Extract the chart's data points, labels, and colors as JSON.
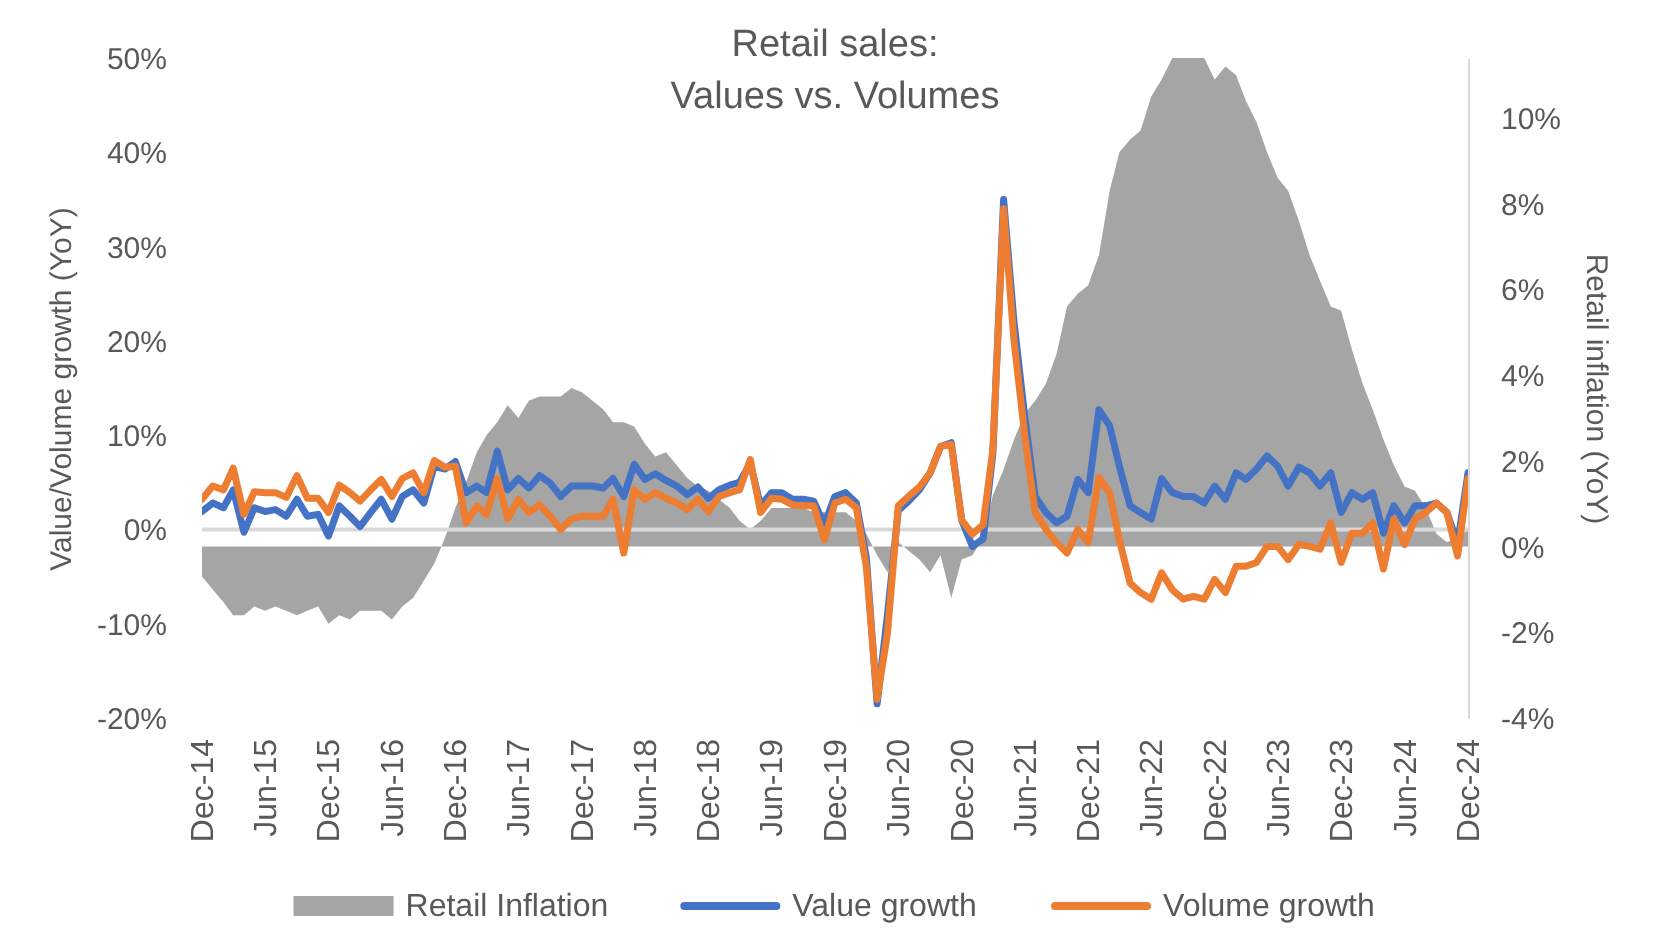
{
  "chart_data": {
    "type": "line",
    "title": "Retail sales:\nValues vs. Volumes",
    "ylabel": "Value/Volume growth (YoY)",
    "y2label": "Retail inflation (YoY)",
    "x": [
      "2014-12",
      "2015-01",
      "2015-02",
      "2015-03",
      "2015-04",
      "2015-05",
      "2015-06",
      "2015-07",
      "2015-08",
      "2015-09",
      "2015-10",
      "2015-11",
      "2015-12",
      "2016-01",
      "2016-02",
      "2016-03",
      "2016-04",
      "2016-05",
      "2016-06",
      "2016-07",
      "2016-08",
      "2016-09",
      "2016-10",
      "2016-11",
      "2016-12",
      "2017-01",
      "2017-02",
      "2017-03",
      "2017-04",
      "2017-05",
      "2017-06",
      "2017-07",
      "2017-08",
      "2017-09",
      "2017-10",
      "2017-11",
      "2017-12",
      "2018-01",
      "2018-02",
      "2018-03",
      "2018-04",
      "2018-05",
      "2018-06",
      "2018-07",
      "2018-08",
      "2018-09",
      "2018-10",
      "2018-11",
      "2018-12",
      "2019-01",
      "2019-02",
      "2019-03",
      "2019-04",
      "2019-05",
      "2019-06",
      "2019-07",
      "2019-08",
      "2019-09",
      "2019-10",
      "2019-11",
      "2019-12",
      "2020-01",
      "2020-02",
      "2020-03",
      "2020-04",
      "2020-05",
      "2020-06",
      "2020-07",
      "2020-08",
      "2020-09",
      "2020-10",
      "2020-11",
      "2020-12",
      "2021-01",
      "2021-02",
      "2021-03",
      "2021-04",
      "2021-05",
      "2021-06",
      "2021-07",
      "2021-08",
      "2021-09",
      "2021-10",
      "2021-11",
      "2021-12",
      "2022-01",
      "2022-02",
      "2022-03",
      "2022-04",
      "2022-05",
      "2022-06",
      "2022-07",
      "2022-08",
      "2022-09",
      "2022-10",
      "2022-11",
      "2022-12",
      "2023-01",
      "2023-02",
      "2023-03",
      "2023-04",
      "2023-05",
      "2023-06",
      "2023-07",
      "2023-08",
      "2023-09",
      "2023-10",
      "2023-11",
      "2023-12",
      "2024-01",
      "2024-02",
      "2024-03",
      "2024-04",
      "2024-05",
      "2024-06",
      "2024-07",
      "2024-08",
      "2024-09",
      "2024-10",
      "2024-11",
      "2024-12"
    ],
    "xlim": [
      "2014-12",
      "2024-12"
    ],
    "xticks": [
      {
        "value": "2014-12",
        "label": "Dec-14"
      },
      {
        "value": "2015-06",
        "label": "Jun-15"
      },
      {
        "value": "2015-12",
        "label": "Dec-15"
      },
      {
        "value": "2016-06",
        "label": "Jun-16"
      },
      {
        "value": "2016-12",
        "label": "Dec-16"
      },
      {
        "value": "2017-06",
        "label": "Jun-17"
      },
      {
        "value": "2017-12",
        "label": "Dec-17"
      },
      {
        "value": "2018-06",
        "label": "Jun-18"
      },
      {
        "value": "2018-12",
        "label": "Dec-18"
      },
      {
        "value": "2019-06",
        "label": "Jun-19"
      },
      {
        "value": "2019-12",
        "label": "Dec-19"
      },
      {
        "value": "2020-06",
        "label": "Jun-20"
      },
      {
        "value": "2020-12",
        "label": "Dec-20"
      },
      {
        "value": "2021-06",
        "label": "Jun-21"
      },
      {
        "value": "2021-12",
        "label": "Dec-21"
      },
      {
        "value": "2022-06",
        "label": "Jun-22"
      },
      {
        "value": "2022-12",
        "label": "Dec-22"
      },
      {
        "value": "2023-06",
        "label": "Jun-23"
      },
      {
        "value": "2023-12",
        "label": "Dec-23"
      },
      {
        "value": "2024-06",
        "label": "Jun-24"
      },
      {
        "value": "2024-12",
        "label": "Dec-24"
      }
    ],
    "ylim": [
      -20,
      50
    ],
    "yticks": [
      {
        "value": -20,
        "label": "-20%"
      },
      {
        "value": -10,
        "label": "-10%"
      },
      {
        "value": 0,
        "label": "0%"
      },
      {
        "value": 10,
        "label": "10%"
      },
      {
        "value": 20,
        "label": "20%"
      },
      {
        "value": 30,
        "label": "30%"
      },
      {
        "value": 40,
        "label": "40%"
      },
      {
        "value": 50,
        "label": "50%"
      }
    ],
    "y2lim": [
      -4,
      11.4
    ],
    "y2ticks": [
      {
        "value": -4,
        "label": "-4%"
      },
      {
        "value": -2,
        "label": "-2%"
      },
      {
        "value": 0,
        "label": "0%"
      },
      {
        "value": 2,
        "label": "2%"
      },
      {
        "value": 4,
        "label": "4%"
      },
      {
        "value": 6,
        "label": "6%"
      },
      {
        "value": 8,
        "label": "8%"
      },
      {
        "value": 10,
        "label": "10%"
      }
    ],
    "series": [
      {
        "name": "Retail Inflation",
        "type": "area",
        "axis": "y2",
        "color": "#a5a5a5",
        "values": [
          -0.7,
          -1.0,
          -1.3,
          -1.6,
          -1.6,
          -1.4,
          -1.5,
          -1.4,
          -1.5,
          -1.6,
          -1.5,
          -1.4,
          -1.8,
          -1.6,
          -1.7,
          -1.5,
          -1.5,
          -1.5,
          -1.7,
          -1.4,
          -1.2,
          -0.8,
          -0.4,
          0.2,
          0.9,
          1.5,
          2.2,
          2.6,
          2.9,
          3.3,
          3.0,
          3.4,
          3.5,
          3.5,
          3.5,
          3.7,
          3.6,
          3.4,
          3.2,
          2.9,
          2.9,
          2.8,
          2.4,
          2.1,
          2.2,
          1.9,
          1.6,
          1.4,
          1.3,
          1.1,
          0.9,
          0.6,
          0.4,
          0.6,
          0.9,
          0.9,
          0.9,
          0.9,
          0.8,
          0.8,
          0.8,
          0.8,
          0.6,
          0.3,
          -0.2,
          -0.6,
          0.1,
          -0.1,
          -0.3,
          -0.6,
          -0.2,
          -1.2,
          -0.3,
          -0.2,
          0.2,
          1.2,
          1.8,
          2.5,
          3.1,
          3.4,
          3.8,
          4.5,
          5.6,
          5.9,
          6.1,
          6.8,
          8.3,
          9.2,
          9.5,
          9.7,
          10.5,
          10.9,
          11.4,
          11.4,
          11.4,
          11.4,
          10.9,
          11.2,
          11.0,
          10.4,
          9.9,
          9.2,
          8.6,
          8.3,
          7.6,
          6.8,
          6.2,
          5.6,
          5.5,
          4.6,
          3.8,
          3.2,
          2.5,
          1.9,
          1.4,
          1.3,
          0.9,
          0.3,
          0.1,
          0.2,
          0.4
        ]
      },
      {
        "name": "Value growth",
        "color": "#4472c4",
        "values": [
          1.9,
          2.8,
          2.3,
          4.2,
          -0.3,
          2.3,
          1.9,
          2.1,
          1.4,
          3.2,
          1.4,
          1.6,
          -0.7,
          2.5,
          1.4,
          0.3,
          1.8,
          3.2,
          1.1,
          3.5,
          4.2,
          2.8,
          6.7,
          6.4,
          7.2,
          3.9,
          4.6,
          3.9,
          8.3,
          4.2,
          5.4,
          4.4,
          5.7,
          4.9,
          3.5,
          4.6,
          4.6,
          4.6,
          4.4,
          5.4,
          3.5,
          6.9,
          5.3,
          5.9,
          5.2,
          4.6,
          3.7,
          4.5,
          3.3,
          4.2,
          4.7,
          5.0,
          7.0,
          2.5,
          3.9,
          3.9,
          3.2,
          3.2,
          3.0,
          0.5,
          3.5,
          3.9,
          2.8,
          -3.0,
          -18.5,
          -9.0,
          2.0,
          3.0,
          4.2,
          6.0,
          8.8,
          9.2,
          1.0,
          -1.8,
          -1.0,
          8.0,
          35.0,
          22.0,
          12.0,
          3.5,
          1.8,
          0.7,
          1.4,
          5.3,
          3.9,
          12.7,
          11.0,
          6.7,
          2.5,
          1.8,
          1.1,
          5.4,
          3.9,
          3.5,
          3.5,
          2.8,
          4.6,
          3.2,
          6.0,
          5.3,
          6.4,
          7.8,
          6.7,
          4.6,
          6.6,
          6.0,
          4.6,
          6.0,
          1.8,
          3.9,
          3.2,
          3.9,
          -0.4,
          2.5,
          0.7,
          2.5,
          2.5,
          2.8,
          1.8,
          -1.5,
          6.0
        ]
      },
      {
        "name": "Volume growth",
        "color": "#ed7d31",
        "values": [
          3.2,
          4.6,
          4.2,
          6.5,
          1.6,
          4.0,
          3.9,
          3.9,
          3.4,
          5.7,
          3.3,
          3.3,
          1.8,
          4.7,
          3.9,
          3.0,
          4.2,
          5.3,
          3.5,
          5.4,
          6.0,
          3.9,
          7.3,
          6.6,
          6.7,
          0.7,
          2.5,
          1.6,
          5.4,
          1.1,
          3.2,
          1.8,
          2.6,
          1.4,
          0.0,
          1.1,
          1.4,
          1.4,
          1.4,
          3.2,
          -2.5,
          4.2,
          3.2,
          3.9,
          3.3,
          2.8,
          2.1,
          3.2,
          1.9,
          3.5,
          3.9,
          4.2,
          7.4,
          1.8,
          3.3,
          3.2,
          2.6,
          2.5,
          2.5,
          -1.1,
          2.8,
          3.2,
          2.3,
          -4.0,
          -18.0,
          -11.0,
          2.5,
          3.5,
          4.5,
          6.0,
          8.8,
          9.0,
          1.0,
          -0.5,
          0.5,
          8.5,
          34.0,
          20.0,
          10.0,
          1.8,
          0.0,
          -1.4,
          -2.5,
          0.0,
          -1.4,
          5.5,
          3.9,
          -1.1,
          -5.7,
          -6.7,
          -7.4,
          -4.6,
          -6.4,
          -7.4,
          -7.1,
          -7.4,
          -5.3,
          -6.7,
          -3.9,
          -3.9,
          -3.5,
          -1.8,
          -1.8,
          -3.2,
          -1.6,
          -1.8,
          -2.1,
          0.7,
          -3.5,
          -0.4,
          -0.4,
          0.7,
          -4.2,
          1.1,
          -1.6,
          1.1,
          1.8,
          2.8,
          1.8,
          -2.8,
          5.4
        ]
      }
    ],
    "ref_lines": [
      {
        "axis": "y",
        "value": 0,
        "color": "#d9d9d9"
      }
    ],
    "legend": "bottom",
    "grid": false
  }
}
